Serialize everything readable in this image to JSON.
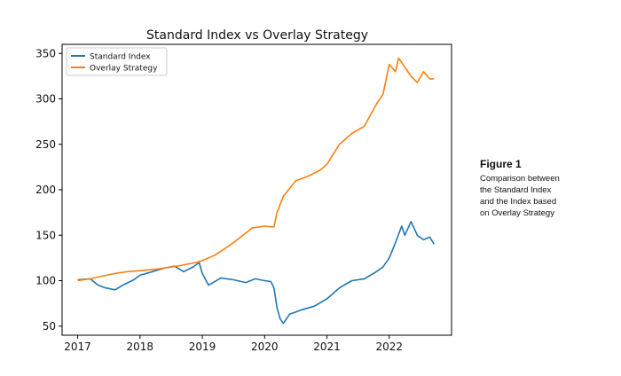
{
  "chart_data": {
    "type": "line",
    "title": "Standard Index vs Overlay Strategy",
    "xlabel": "",
    "ylabel": "",
    "x_ticks": [
      "2017",
      "2018",
      "2019",
      "2020",
      "2021",
      "2022"
    ],
    "y_ticks": [
      "50",
      "100",
      "150",
      "200",
      "250",
      "300",
      "350"
    ],
    "xlim": [
      2016.75,
      2023.0
    ],
    "ylim": [
      40,
      360
    ],
    "legend_position": "top-left",
    "grid": false,
    "series": [
      {
        "name": "Standard Index",
        "color": "#1f77b4",
        "x": [
          2017.0,
          2017.2,
          2017.33,
          2017.45,
          2017.6,
          2017.75,
          2017.9,
          2018.0,
          2018.2,
          2018.4,
          2018.55,
          2018.7,
          2018.85,
          2018.95,
          2019.0,
          2019.1,
          2019.3,
          2019.5,
          2019.7,
          2019.85,
          2020.0,
          2020.1,
          2020.15,
          2020.2,
          2020.25,
          2020.3,
          2020.4,
          2020.6,
          2020.8,
          2021.0,
          2021.2,
          2021.4,
          2021.6,
          2021.75,
          2021.9,
          2022.0,
          2022.1,
          2022.2,
          2022.25,
          2022.35,
          2022.45,
          2022.55,
          2022.65,
          2022.72
        ],
        "y": [
          101,
          102,
          95,
          92,
          90,
          96,
          101,
          106,
          110,
          114,
          116,
          110,
          115,
          120,
          108,
          95,
          103,
          101,
          98,
          102,
          100,
          99,
          92,
          70,
          58,
          53,
          63,
          68,
          72,
          80,
          92,
          100,
          102,
          108,
          115,
          125,
          142,
          160,
          150,
          165,
          150,
          145,
          148,
          140
        ]
      },
      {
        "name": "Overlay Strategy",
        "color": "#ff7f0e",
        "x": [
          2017.0,
          2017.2,
          2017.4,
          2017.6,
          2017.8,
          2018.0,
          2018.3,
          2018.6,
          2018.9,
          2019.0,
          2019.2,
          2019.4,
          2019.6,
          2019.8,
          2020.0,
          2020.15,
          2020.2,
          2020.3,
          2020.5,
          2020.7,
          2020.9,
          2021.0,
          2021.2,
          2021.4,
          2021.6,
          2021.8,
          2021.9,
          2022.0,
          2022.1,
          2022.15,
          2022.25,
          2022.35,
          2022.45,
          2022.55,
          2022.65,
          2022.72
        ],
        "y": [
          100,
          102,
          105,
          108,
          110,
          111,
          113,
          116,
          120,
          122,
          128,
          137,
          147,
          158,
          160,
          159,
          175,
          193,
          210,
          215,
          222,
          228,
          250,
          262,
          270,
          295,
          305,
          338,
          330,
          345,
          335,
          325,
          318,
          330,
          322,
          322
        ]
      }
    ]
  },
  "caption": {
    "title": "Figure 1",
    "lines": [
      "Comparison between",
      "the Standard Index",
      "and the Index based",
      "on Overlay Strategy"
    ]
  }
}
